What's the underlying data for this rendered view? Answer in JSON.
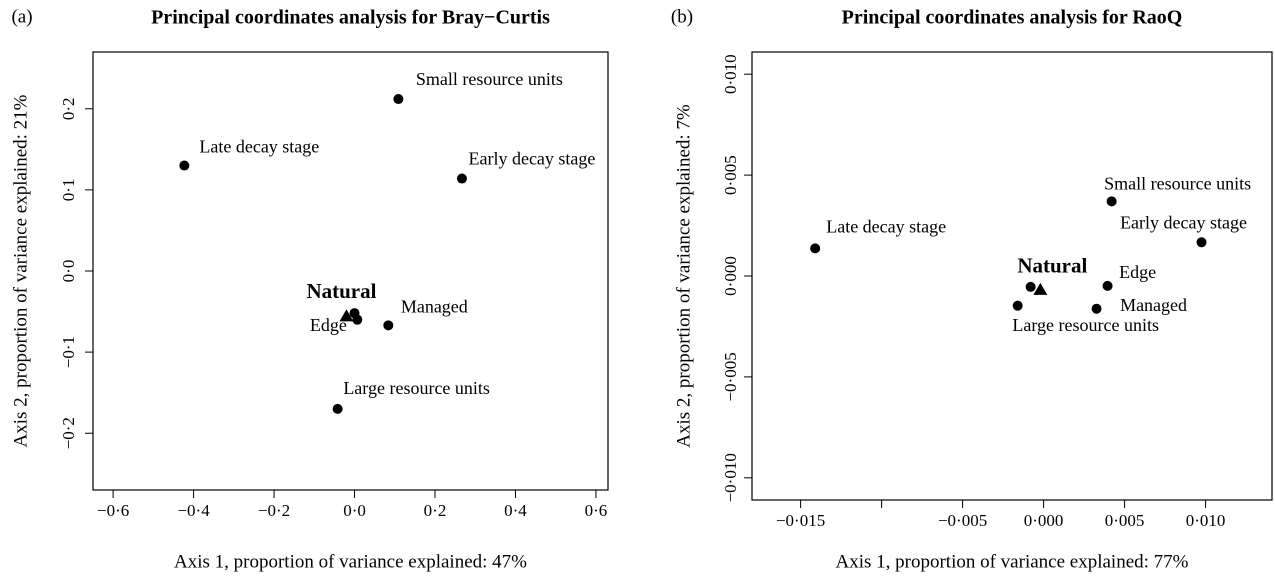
{
  "chart_data": [
    {
      "type": "scatter",
      "panel": "(a)",
      "title": "Principal coordinates analysis for Bray−Curtis",
      "xlabel": "Axis 1, proportion of variance explained: 47%",
      "ylabel": "Axis 2, proportion of variance explained: 21%",
      "x": [
        0.109,
        -0.423,
        0.267,
        0.084,
        0.007,
        -0.02,
        -0.042,
        0.0
      ],
      "y": [
        0.212,
        0.13,
        0.114,
        -0.067,
        -0.06,
        -0.056,
        -0.17,
        -0.052
      ],
      "point_labels": [
        "Small resource units",
        "Late decay stage",
        "Early decay stage",
        "Managed",
        "Edge",
        "Natural",
        "Large resource units",
        null
      ],
      "markers": [
        "circle",
        "circle",
        "circle",
        "circle",
        "circle",
        "triangle",
        "circle",
        "circle"
      ],
      "bold_labels": [
        "Natural"
      ],
      "color": "#000000",
      "xlim": [
        -0.65,
        0.63
      ],
      "ylim": [
        -0.27,
        0.27
      ],
      "xticks": [
        {
          "value": -0.6,
          "label": "−0·6"
        },
        {
          "value": -0.4,
          "label": "−0·4"
        },
        {
          "value": -0.2,
          "label": "−0·2"
        },
        {
          "value": 0,
          "label": "0·0"
        },
        {
          "value": 0.2,
          "label": "0·2"
        },
        {
          "value": 0.4,
          "label": "0·4"
        },
        {
          "value": 0.6,
          "label": "0·6"
        }
      ],
      "yticks": [
        {
          "value": -0.2,
          "label": "−0·2"
        },
        {
          "value": -0.1,
          "label": "−0·1"
        },
        {
          "value": 0,
          "label": "0·0"
        },
        {
          "value": 0.1,
          "label": "0·1"
        },
        {
          "value": 0.2,
          "label": "0·2"
        }
      ],
      "grid": false
    },
    {
      "type": "scatter",
      "panel": "(b)",
      "title": "Principal coordinates analysis for RaoQ",
      "xlabel": "Axis 1, proportion of variance explained: 77%",
      "ylabel": "Axis 2, proportion of variance explained: 7%",
      "x": [
        0.0042,
        -0.0141,
        0.00975,
        0.00395,
        0.00327,
        -0.0016,
        -0.0008,
        -0.0002
      ],
      "y": [
        0.0037,
        0.00137,
        0.00167,
        -0.00049,
        -0.00162,
        -0.00147,
        -0.00054,
        -0.00069
      ],
      "point_labels": [
        "Small resource units",
        "Late decay stage",
        "Early decay stage",
        "Edge",
        "Managed",
        "Large resource units",
        null,
        "Natural"
      ],
      "markers": [
        "circle",
        "circle",
        "circle",
        "circle",
        "circle",
        "circle",
        "circle",
        "triangle"
      ],
      "bold_labels": [
        "Natural"
      ],
      "color": "#000000",
      "xlim": [
        -0.018,
        0.0141
      ],
      "ylim": [
        -0.0111,
        0.0111
      ],
      "xticks": [
        {
          "value": -0.015,
          "label": "−0·015"
        },
        {
          "value": -0.01,
          "label": null
        },
        {
          "value": -0.005,
          "label": "−0·005"
        },
        {
          "value": 0,
          "label": "0·000"
        },
        {
          "value": 0.005,
          "label": "0·005"
        },
        {
          "value": 0.01,
          "label": "0·010"
        }
      ],
      "yticks": [
        {
          "value": -0.01,
          "label": "−0·010"
        },
        {
          "value": -0.005,
          "label": "−0·005"
        },
        {
          "value": 0,
          "label": "0·000"
        },
        {
          "value": 0.005,
          "label": "0·005"
        },
        {
          "value": 0.01,
          "label": "0·010"
        }
      ],
      "grid": false
    }
  ]
}
